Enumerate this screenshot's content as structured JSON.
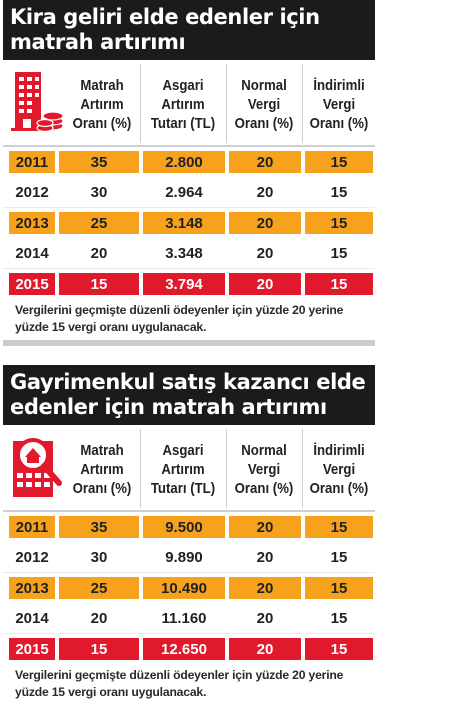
{
  "colors": {
    "title_bg": "#1b1b1b",
    "highlight": "#f6a21d",
    "current_year": "#e0192c"
  },
  "panels": [
    {
      "icon": "building-coins-icon",
      "title_line1": "Kira geliri elde edenler için",
      "title_line2": "matrah artırımı",
      "headers": [
        [
          "Matrah",
          "Artırım",
          "Oranı (%)"
        ],
        [
          "Asgari",
          "Artırım",
          "Tutarı (TL)"
        ],
        [
          "Normal",
          "Vergi",
          "Oranı (%)"
        ],
        [
          "İndirimli",
          "Vergi",
          "Oranı (%)"
        ]
      ],
      "rows": [
        {
          "year": "2011",
          "rate": "35",
          "amount": "2.800",
          "normal": "20",
          "reduced": "15",
          "style": "orange"
        },
        {
          "year": "2012",
          "rate": "30",
          "amount": "2.964",
          "normal": "20",
          "reduced": "15",
          "style": "white"
        },
        {
          "year": "2013",
          "rate": "25",
          "amount": "3.148",
          "normal": "20",
          "reduced": "15",
          "style": "orange"
        },
        {
          "year": "2014",
          "rate": "20",
          "amount": "3.348",
          "normal": "20",
          "reduced": "15",
          "style": "white"
        },
        {
          "year": "2015",
          "rate": "15",
          "amount": "3.794",
          "normal": "20",
          "reduced": "15",
          "style": "red"
        }
      ],
      "note_line1": "Vergilerini geçmişte düzenli ödeyenler için yüzde 20 yerine",
      "note_line2": "yüzde 15 vergi oranı uygulanacak."
    },
    {
      "icon": "house-search-icon",
      "title_line1": "Gayrimenkul satış kazancı elde",
      "title_line2": "edenler için matrah artırımı",
      "headers": [
        [
          "Matrah",
          "Artırım",
          "Oranı (%)"
        ],
        [
          "Asgari",
          "Artırım",
          "Tutarı (TL)"
        ],
        [
          "Normal",
          "Vergi",
          "Oranı (%)"
        ],
        [
          "İndirimli",
          "Vergi",
          "Oranı (%)"
        ]
      ],
      "rows": [
        {
          "year": "2011",
          "rate": "35",
          "amount": "9.500",
          "normal": "20",
          "reduced": "15",
          "style": "orange"
        },
        {
          "year": "2012",
          "rate": "30",
          "amount": "9.890",
          "normal": "20",
          "reduced": "15",
          "style": "white"
        },
        {
          "year": "2013",
          "rate": "25",
          "amount": "10.490",
          "normal": "20",
          "reduced": "15",
          "style": "orange"
        },
        {
          "year": "2014",
          "rate": "20",
          "amount": "11.160",
          "normal": "20",
          "reduced": "15",
          "style": "white"
        },
        {
          "year": "2015",
          "rate": "15",
          "amount": "12.650",
          "normal": "20",
          "reduced": "15",
          "style": "red"
        }
      ],
      "note_line1": "Vergilerini geçmişte düzenli ödeyenler için yüzde 20 yerine",
      "note_line2": "yüzde 15 vergi oranı uygulanacak."
    }
  ]
}
